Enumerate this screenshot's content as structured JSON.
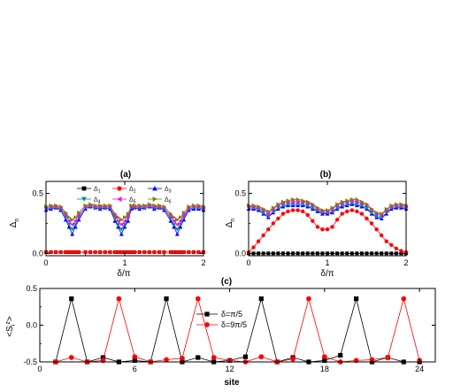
{
  "chart_data": [
    {
      "id": "a",
      "type": "line",
      "title": "(a)",
      "xlabel": "δ/π",
      "ylabel": "Δn",
      "ylabel_main": "Δ",
      "ylabel_sub": "n",
      "xlim": [
        0,
        2
      ],
      "ylim": [
        -0.02,
        0.6
      ],
      "xticks": [
        0,
        1,
        2
      ],
      "xtick_labels": [
        "0",
        "1",
        "2"
      ],
      "yticks": [
        0,
        0.5
      ],
      "ytick_labels": [
        "0.0",
        "0.5"
      ],
      "legend_position": "top",
      "x": [
        0.0,
        0.0625,
        0.125,
        0.1875,
        0.25,
        0.2917,
        0.3333,
        0.375,
        0.4167,
        0.5,
        0.5625,
        0.625,
        0.6875,
        0.75,
        0.8125,
        0.875,
        0.9167,
        0.9583,
        1.0,
        1.0417,
        1.0833,
        1.125,
        1.1875,
        1.25,
        1.3125,
        1.375,
        1.4375,
        1.5,
        1.5833,
        1.625,
        1.6667,
        1.7083,
        1.75,
        1.8125,
        1.875,
        1.9375,
        2.0
      ],
      "series": [
        {
          "name": "Δ1",
          "label_main": "Δ",
          "label_sub": "1",
          "color": "#000000",
          "marker": "square",
          "values": [
            0.01,
            0.01,
            0.01,
            0.01,
            0.01,
            0.01,
            0.01,
            0.01,
            0.01,
            0.01,
            0.01,
            0.01,
            0.01,
            0.01,
            0.01,
            0.01,
            0.01,
            0.01,
            0.01,
            0.01,
            0.01,
            0.01,
            0.01,
            0.01,
            0.01,
            0.01,
            0.01,
            0.01,
            0.01,
            0.01,
            0.01,
            0.01,
            0.01,
            0.01,
            0.01,
            0.01,
            0.01
          ]
        },
        {
          "name": "Δ2",
          "label_main": "Δ",
          "label_sub": "2",
          "color": "#ff0000",
          "marker": "circle",
          "values": [
            0.01,
            0.01,
            0.01,
            0.01,
            0.01,
            0.01,
            0.01,
            0.01,
            0.01,
            0.01,
            0.01,
            0.01,
            0.01,
            0.01,
            0.01,
            0.01,
            0.01,
            0.01,
            0.01,
            0.01,
            0.01,
            0.01,
            0.01,
            0.01,
            0.01,
            0.01,
            0.01,
            0.01,
            0.01,
            0.01,
            0.01,
            0.01,
            0.01,
            0.01,
            0.01,
            0.01,
            0.01
          ]
        },
        {
          "name": "Δ3",
          "label_main": "Δ",
          "label_sub": "3",
          "color": "#0000ff",
          "marker": "triangle-up",
          "values": [
            0.36,
            0.37,
            0.38,
            0.36,
            0.28,
            0.22,
            0.16,
            0.22,
            0.28,
            0.37,
            0.39,
            0.38,
            0.37,
            0.38,
            0.37,
            0.27,
            0.22,
            0.16,
            0.22,
            0.27,
            0.37,
            0.38,
            0.37,
            0.38,
            0.39,
            0.37,
            0.38,
            0.36,
            0.27,
            0.22,
            0.16,
            0.22,
            0.28,
            0.36,
            0.37,
            0.37,
            0.36
          ]
        },
        {
          "name": "Δ4",
          "label_main": "Δ",
          "label_sub": "4",
          "color": "#009090",
          "marker": "triangle-down",
          "values": [
            0.37,
            0.38,
            0.38,
            0.37,
            0.3,
            0.24,
            0.2,
            0.24,
            0.3,
            0.38,
            0.39,
            0.38,
            0.38,
            0.38,
            0.38,
            0.29,
            0.24,
            0.2,
            0.24,
            0.29,
            0.38,
            0.38,
            0.38,
            0.38,
            0.39,
            0.38,
            0.38,
            0.37,
            0.29,
            0.24,
            0.2,
            0.24,
            0.3,
            0.37,
            0.38,
            0.38,
            0.37
          ]
        },
        {
          "name": "Δ5",
          "label_main": "Δ",
          "label_sub": "5",
          "color": "#ff00ff",
          "marker": "triangle-left",
          "values": [
            0.38,
            0.39,
            0.39,
            0.38,
            0.32,
            0.27,
            0.24,
            0.27,
            0.32,
            0.39,
            0.4,
            0.39,
            0.39,
            0.39,
            0.39,
            0.31,
            0.27,
            0.24,
            0.27,
            0.31,
            0.39,
            0.39,
            0.39,
            0.39,
            0.4,
            0.39,
            0.39,
            0.38,
            0.31,
            0.27,
            0.24,
            0.27,
            0.32,
            0.38,
            0.39,
            0.39,
            0.38
          ]
        },
        {
          "name": "Δ6",
          "label_main": "Δ",
          "label_sub": "6",
          "color": "#808000",
          "marker": "triangle-right",
          "values": [
            0.39,
            0.4,
            0.4,
            0.39,
            0.34,
            0.3,
            0.28,
            0.3,
            0.34,
            0.4,
            0.41,
            0.4,
            0.4,
            0.4,
            0.4,
            0.33,
            0.3,
            0.28,
            0.3,
            0.33,
            0.4,
            0.4,
            0.4,
            0.4,
            0.41,
            0.4,
            0.4,
            0.39,
            0.33,
            0.3,
            0.28,
            0.3,
            0.34,
            0.39,
            0.4,
            0.4,
            0.39
          ]
        }
      ]
    },
    {
      "id": "b",
      "type": "line",
      "title": "(b)",
      "xlabel": "δ/π",
      "ylabel": "Δn",
      "ylabel_main": "Δ",
      "ylabel_sub": "n",
      "xlim": [
        0,
        2
      ],
      "ylim": [
        -0.02,
        0.6
      ],
      "xticks": [
        0,
        1,
        2
      ],
      "xtick_labels": [
        "0",
        "1",
        "2"
      ],
      "yticks": [
        0,
        0.5
      ],
      "ytick_labels": [
        "0.0",
        "0.5"
      ],
      "x": [
        0.0,
        0.0625,
        0.125,
        0.1875,
        0.25,
        0.3125,
        0.375,
        0.4375,
        0.5,
        0.5625,
        0.625,
        0.6875,
        0.75,
        0.8125,
        0.875,
        0.9375,
        1.0,
        1.0625,
        1.125,
        1.1875,
        1.25,
        1.3125,
        1.375,
        1.4375,
        1.5,
        1.5625,
        1.625,
        1.6875,
        1.75,
        1.8125,
        1.875,
        1.9375,
        2.0
      ],
      "series": [
        {
          "name": "Δ1",
          "color": "#000000",
          "marker": "square",
          "values": [
            0.0,
            0.0,
            0.0,
            0.0,
            0.0,
            0.0,
            0.0,
            0.0,
            0.0,
            0.0,
            0.0,
            0.0,
            0.0,
            0.0,
            0.0,
            0.0,
            0.0,
            0.0,
            0.0,
            0.0,
            0.0,
            0.0,
            0.0,
            0.0,
            0.0,
            0.0,
            0.0,
            0.0,
            0.0,
            0.0,
            0.0,
            0.0,
            0.0
          ]
        },
        {
          "name": "Δ2",
          "color": "#ff0000",
          "marker": "circle",
          "values": [
            0.01,
            0.05,
            0.1,
            0.15,
            0.2,
            0.25,
            0.29,
            0.33,
            0.35,
            0.36,
            0.36,
            0.35,
            0.32,
            0.27,
            0.22,
            0.2,
            0.2,
            0.22,
            0.28,
            0.33,
            0.35,
            0.36,
            0.35,
            0.33,
            0.29,
            0.25,
            0.2,
            0.15,
            0.1,
            0.07,
            0.04,
            0.02,
            0.01
          ]
        },
        {
          "name": "Δ3",
          "color": "#0000ff",
          "marker": "triangle-up",
          "values": [
            0.37,
            0.37,
            0.36,
            0.33,
            0.3,
            0.34,
            0.37,
            0.39,
            0.4,
            0.4,
            0.4,
            0.4,
            0.39,
            0.37,
            0.35,
            0.33,
            0.33,
            0.34,
            0.37,
            0.39,
            0.4,
            0.41,
            0.4,
            0.39,
            0.37,
            0.33,
            0.3,
            0.29,
            0.33,
            0.37,
            0.38,
            0.38,
            0.37
          ]
        },
        {
          "name": "Δ4",
          "color": "#009090",
          "marker": "triangle-down",
          "values": [
            0.38,
            0.38,
            0.37,
            0.34,
            0.31,
            0.35,
            0.38,
            0.4,
            0.41,
            0.41,
            0.41,
            0.41,
            0.4,
            0.38,
            0.36,
            0.34,
            0.34,
            0.35,
            0.38,
            0.4,
            0.41,
            0.42,
            0.41,
            0.4,
            0.38,
            0.34,
            0.31,
            0.3,
            0.34,
            0.38,
            0.39,
            0.39,
            0.38
          ]
        },
        {
          "name": "Δ5",
          "color": "#ff00ff",
          "marker": "triangle-left",
          "values": [
            0.39,
            0.39,
            0.38,
            0.36,
            0.33,
            0.37,
            0.4,
            0.42,
            0.43,
            0.43,
            0.43,
            0.43,
            0.42,
            0.4,
            0.37,
            0.35,
            0.35,
            0.37,
            0.4,
            0.42,
            0.43,
            0.44,
            0.43,
            0.42,
            0.4,
            0.36,
            0.33,
            0.32,
            0.36,
            0.39,
            0.4,
            0.4,
            0.39
          ]
        },
        {
          "name": "Δ6",
          "color": "#808000",
          "marker": "triangle-right",
          "values": [
            0.4,
            0.4,
            0.39,
            0.37,
            0.35,
            0.38,
            0.41,
            0.43,
            0.44,
            0.45,
            0.45,
            0.44,
            0.43,
            0.41,
            0.38,
            0.36,
            0.36,
            0.38,
            0.41,
            0.43,
            0.44,
            0.45,
            0.45,
            0.43,
            0.41,
            0.37,
            0.34,
            0.33,
            0.37,
            0.4,
            0.41,
            0.41,
            0.4
          ]
        }
      ]
    },
    {
      "id": "c",
      "type": "line",
      "title": "(c)",
      "xlabel": "site",
      "ylabel": "<Siz>",
      "ylabel_main": "<S",
      "ylabel_sup": "z",
      "ylabel_sub": "i",
      "ylabel_end": ">",
      "xlim": [
        0,
        25
      ],
      "ylim": [
        -0.5,
        0.5
      ],
      "xticks": [
        0,
        6,
        12,
        18,
        24
      ],
      "xtick_labels": [
        "0",
        "6",
        "12",
        "18",
        "24"
      ],
      "yticks": [
        -0.5,
        0.0,
        0.5
      ],
      "ytick_labels": [
        "-0.5",
        "0.0",
        "0.5"
      ],
      "legend_position": "center",
      "x": [
        1,
        2,
        3,
        4,
        5,
        6,
        7,
        8,
        9,
        10,
        11,
        12,
        13,
        14,
        15,
        16,
        17,
        18,
        19,
        20,
        21,
        22,
        23,
        24
      ],
      "series": [
        {
          "name": "δ=π/5",
          "label": "δ=π/5",
          "color": "#000000",
          "marker": "square",
          "values": [
            -0.5,
            0.36,
            -0.5,
            -0.44,
            -0.5,
            -0.48,
            -0.5,
            0.36,
            -0.5,
            -0.44,
            -0.5,
            -0.48,
            -0.43,
            0.36,
            -0.5,
            -0.44,
            -0.5,
            -0.48,
            -0.41,
            0.36,
            -0.5,
            -0.44,
            -0.5,
            -0.5
          ]
        },
        {
          "name": "δ=9π/5",
          "label": "δ=9π/5",
          "color": "#ff0000",
          "marker": "circle",
          "values": [
            -0.5,
            -0.44,
            -0.5,
            -0.48,
            0.36,
            -0.43,
            -0.5,
            -0.47,
            -0.45,
            0.36,
            -0.44,
            -0.48,
            -0.5,
            -0.43,
            -0.5,
            -0.46,
            0.36,
            -0.43,
            -0.5,
            -0.48,
            -0.47,
            -0.44,
            0.36,
            -0.48
          ]
        }
      ]
    }
  ]
}
